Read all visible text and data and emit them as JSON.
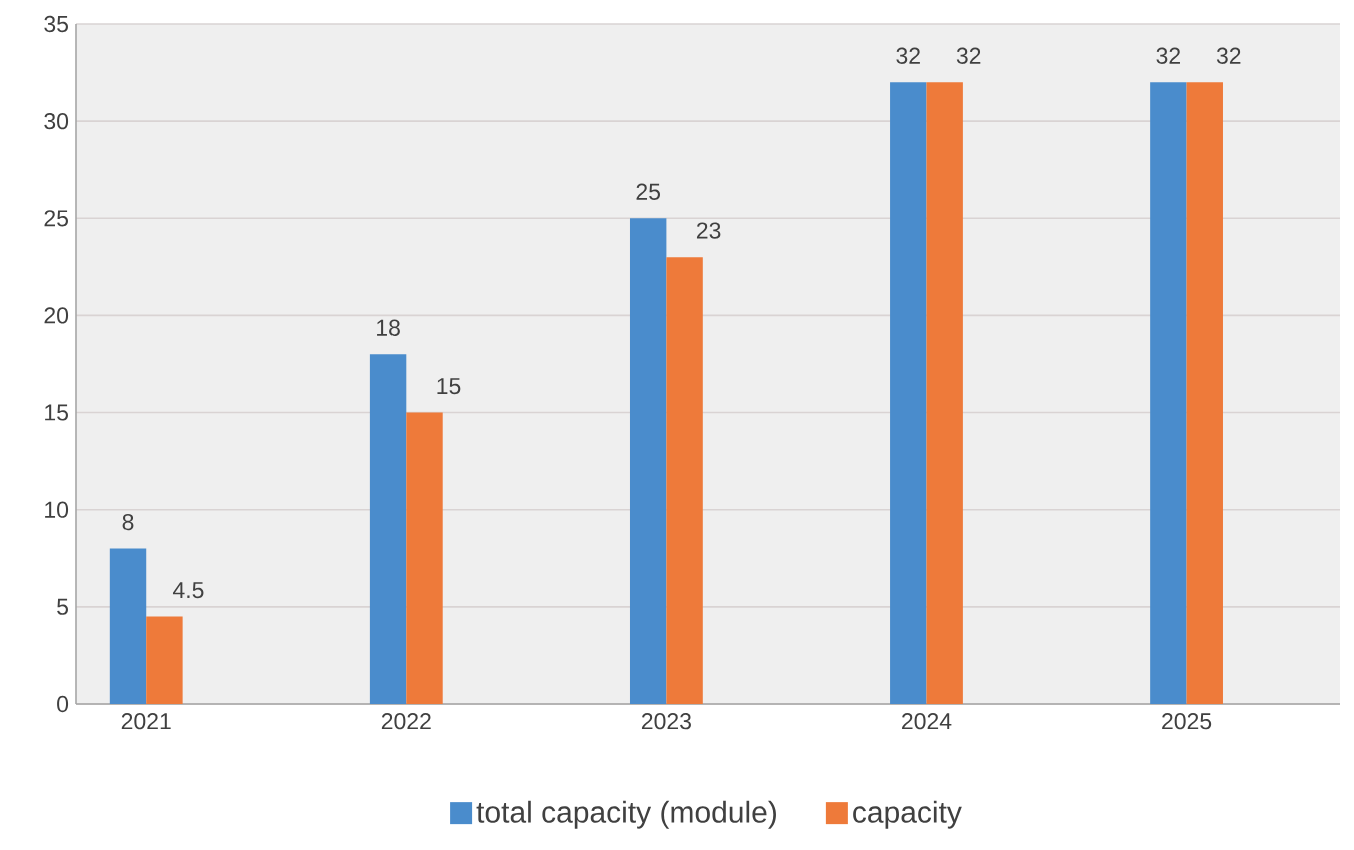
{
  "chart_data": {
    "type": "bar",
    "categories": [
      "2021",
      "2022",
      "2023",
      "2024",
      "2025"
    ],
    "series": [
      {
        "name": "total capacity (module)",
        "color": "#4a8ccc",
        "values": [
          8,
          18,
          25,
          32,
          32
        ]
      },
      {
        "name": "capacity",
        "color": "#ee7a3a",
        "values": [
          4.5,
          15,
          23,
          32,
          32
        ]
      }
    ],
    "ylim": [
      0,
      35
    ],
    "yticks": [
      0,
      5,
      10,
      15,
      20,
      25,
      30,
      35
    ],
    "grid": "y",
    "legend": "bottom",
    "data_labels": true
  }
}
